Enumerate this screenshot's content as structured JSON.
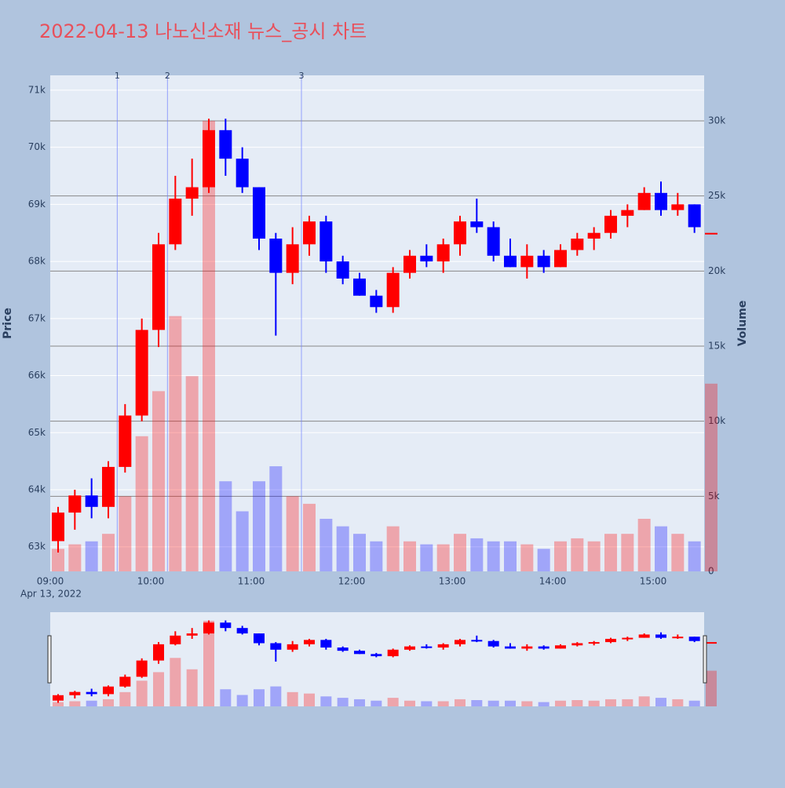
{
  "chart_data": {
    "type": "candlestick",
    "title": "2022-04-13 나노신소재 뉴스_공시 차트",
    "x": [
      "09:00",
      "09:10",
      "09:20",
      "09:30",
      "09:40",
      "09:50",
      "10:00",
      "10:10",
      "10:20",
      "10:30",
      "10:40",
      "10:50",
      "11:00",
      "11:10",
      "11:20",
      "11:30",
      "11:40",
      "11:50",
      "12:00",
      "12:10",
      "12:20",
      "12:30",
      "12:40",
      "12:50",
      "13:00",
      "13:10",
      "13:20",
      "13:30",
      "13:40",
      "13:50",
      "14:00",
      "14:10",
      "14:20",
      "14:30",
      "14:40",
      "14:50",
      "15:00",
      "15:10",
      "15:20",
      "15:30"
    ],
    "open": [
      63100,
      63600,
      63900,
      63700,
      64400,
      65300,
      66800,
      68300,
      69100,
      69300,
      70300,
      69800,
      69300,
      68400,
      67800,
      68300,
      68700,
      68000,
      67700,
      67400,
      67200,
      67800,
      68100,
      68000,
      68300,
      68700,
      68600,
      68100,
      67900,
      68100,
      67900,
      68200,
      68400,
      68500,
      68800,
      68900,
      69200,
      68900,
      69000,
      68500
    ],
    "high": [
      63700,
      64000,
      64200,
      64500,
      65500,
      67000,
      68500,
      69500,
      69800,
      70500,
      70500,
      70000,
      69300,
      68500,
      68600,
      68800,
      68800,
      68100,
      67800,
      67500,
      67900,
      68200,
      68300,
      68400,
      68800,
      69100,
      68700,
      68400,
      68300,
      68200,
      68300,
      68500,
      68600,
      68900,
      69000,
      69300,
      69400,
      69200,
      69000,
      68500
    ],
    "low": [
      62900,
      63300,
      63500,
      63500,
      64300,
      65200,
      66500,
      68200,
      68800,
      69200,
      69500,
      69200,
      68200,
      66700,
      67600,
      68100,
      67800,
      67600,
      67400,
      67100,
      67100,
      67700,
      67900,
      67800,
      68100,
      68500,
      68000,
      67900,
      67700,
      67800,
      67900,
      68100,
      68200,
      68400,
      68600,
      68900,
      68800,
      68800,
      68500,
      68500
    ],
    "close": [
      63600,
      63900,
      63700,
      64400,
      65300,
      66800,
      68300,
      69100,
      69300,
      70300,
      69800,
      69300,
      68400,
      67800,
      68300,
      68700,
      68000,
      67700,
      67400,
      67200,
      67800,
      68100,
      68000,
      68300,
      68700,
      68600,
      68100,
      67900,
      68100,
      67900,
      68200,
      68400,
      68500,
      68800,
      68900,
      69200,
      68900,
      69000,
      68600,
      68500
    ],
    "volume": [
      1500,
      1800,
      2000,
      2500,
      5000,
      9000,
      12000,
      17000,
      13000,
      30000,
      6000,
      4000,
      6000,
      7000,
      5000,
      4500,
      3500,
      3000,
      2500,
      2000,
      3000,
      2000,
      1800,
      1800,
      2500,
      2200,
      2000,
      2000,
      1800,
      1500,
      2000,
      2200,
      2000,
      2500,
      2500,
      3500,
      3000,
      2500,
      2000,
      12500
    ],
    "x_sublabel": "Apr 13, 2022",
    "xticks": [
      "09:00",
      "10:00",
      "11:00",
      "12:00",
      "13:00",
      "14:00",
      "15:00"
    ],
    "ylabel": "Price",
    "y2label": "Volume",
    "ylim": [
      62570,
      71260
    ],
    "yticks": [
      {
        "value": 63000,
        "label": "63k"
      },
      {
        "value": 64000,
        "label": "64k"
      },
      {
        "value": 65000,
        "label": "65k"
      },
      {
        "value": 66000,
        "label": "66k"
      },
      {
        "value": 67000,
        "label": "67k"
      },
      {
        "value": 68000,
        "label": "68k"
      },
      {
        "value": 69000,
        "label": "69k"
      },
      {
        "value": 70000,
        "label": "70k"
      },
      {
        "value": 71000,
        "label": "71k"
      }
    ],
    "y2lim": [
      0,
      33030
    ],
    "y2ticks": [
      0,
      {
        "value": 5000,
        "label": "5k"
      },
      {
        "value": 10000,
        "label": "10k"
      },
      {
        "value": 15000,
        "label": "15k"
      },
      {
        "value": 20000,
        "label": "20k"
      },
      {
        "value": 25000,
        "label": "25k"
      },
      {
        "value": 30000,
        "label": "30k"
      }
    ],
    "events": [
      {
        "x": "09:40",
        "label": "1"
      },
      {
        "x": "10:10",
        "label": "2"
      },
      {
        "x": "11:30",
        "label": "3"
      }
    ],
    "up_color": "#ff0000",
    "down_color": "#0000ff"
  }
}
